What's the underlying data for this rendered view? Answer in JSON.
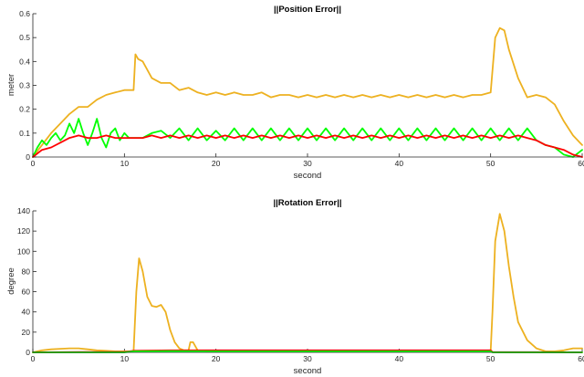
{
  "chart_data": [
    {
      "type": "line",
      "title": "||Position Error||",
      "xlabel": "second",
      "ylabel": "meter",
      "xlim": [
        0,
        60
      ],
      "ylim": [
        0,
        0.6
      ],
      "xticks": [
        "0",
        "10",
        "20",
        "30",
        "40",
        "50",
        "60"
      ],
      "yticks": [
        "0",
        "0.1",
        "0.2",
        "0.3",
        "0.4",
        "0.5",
        "0.6"
      ],
      "grid": false,
      "series": [
        {
          "color": "#EDB120",
          "x": [
            0,
            1,
            2,
            3,
            4,
            5,
            6,
            7,
            8,
            9,
            10,
            11,
            11.2,
            11.5,
            12,
            13,
            14,
            15,
            16,
            17,
            18,
            19,
            20,
            21,
            22,
            23,
            24,
            25,
            26,
            27,
            28,
            29,
            30,
            31,
            32,
            33,
            34,
            35,
            36,
            37,
            38,
            39,
            40,
            41,
            42,
            43,
            44,
            45,
            46,
            47,
            48,
            49,
            50,
            50.5,
            51,
            51.5,
            52,
            53,
            54,
            55,
            56,
            57,
            58,
            59,
            60
          ],
          "y": [
            0.0,
            0.05,
            0.1,
            0.14,
            0.18,
            0.21,
            0.21,
            0.24,
            0.26,
            0.27,
            0.28,
            0.28,
            0.43,
            0.41,
            0.4,
            0.33,
            0.31,
            0.31,
            0.28,
            0.29,
            0.27,
            0.26,
            0.27,
            0.26,
            0.27,
            0.26,
            0.26,
            0.27,
            0.25,
            0.26,
            0.26,
            0.25,
            0.26,
            0.25,
            0.26,
            0.25,
            0.26,
            0.25,
            0.26,
            0.25,
            0.26,
            0.25,
            0.26,
            0.25,
            0.26,
            0.25,
            0.26,
            0.25,
            0.26,
            0.25,
            0.26,
            0.26,
            0.27,
            0.5,
            0.54,
            0.53,
            0.45,
            0.33,
            0.25,
            0.26,
            0.25,
            0.22,
            0.15,
            0.09,
            0.05
          ]
        },
        {
          "color": "#00FF00",
          "x": [
            0,
            0.5,
            1,
            1.5,
            2,
            2.5,
            3,
            3.5,
            4,
            4.5,
            5,
            5.5,
            6,
            6.5,
            7,
            7.5,
            8,
            8.5,
            9,
            9.5,
            10,
            10.5,
            11,
            12,
            13,
            14,
            15,
            16,
            17,
            18,
            19,
            20,
            21,
            22,
            23,
            24,
            25,
            26,
            27,
            28,
            29,
            30,
            31,
            32,
            33,
            34,
            35,
            36,
            37,
            38,
            39,
            40,
            41,
            42,
            43,
            44,
            45,
            46,
            47,
            48,
            49,
            50,
            51,
            52,
            53,
            54,
            55,
            56,
            57,
            58,
            59,
            60
          ],
          "y": [
            0.0,
            0.04,
            0.07,
            0.05,
            0.08,
            0.1,
            0.07,
            0.09,
            0.14,
            0.1,
            0.16,
            0.1,
            0.05,
            0.1,
            0.16,
            0.08,
            0.04,
            0.1,
            0.12,
            0.07,
            0.1,
            0.08,
            0.08,
            0.08,
            0.1,
            0.11,
            0.08,
            0.12,
            0.07,
            0.12,
            0.07,
            0.11,
            0.07,
            0.12,
            0.07,
            0.12,
            0.07,
            0.12,
            0.07,
            0.12,
            0.07,
            0.12,
            0.07,
            0.12,
            0.07,
            0.12,
            0.07,
            0.12,
            0.07,
            0.12,
            0.07,
            0.12,
            0.07,
            0.12,
            0.07,
            0.12,
            0.07,
            0.12,
            0.07,
            0.12,
            0.07,
            0.12,
            0.07,
            0.12,
            0.07,
            0.12,
            0.07,
            0.05,
            0.04,
            0.01,
            0.0,
            0.03
          ]
        },
        {
          "color": "#FF0000",
          "x": [
            0,
            1,
            2,
            3,
            4,
            5,
            6,
            7,
            8,
            9,
            10,
            11,
            12,
            13,
            14,
            15,
            16,
            17,
            18,
            19,
            20,
            21,
            22,
            23,
            24,
            25,
            26,
            27,
            28,
            29,
            30,
            31,
            32,
            33,
            34,
            35,
            36,
            37,
            38,
            39,
            40,
            41,
            42,
            43,
            44,
            45,
            46,
            47,
            48,
            49,
            50,
            51,
            52,
            53,
            54,
            55,
            56,
            57,
            58,
            59,
            60
          ],
          "y": [
            0.0,
            0.03,
            0.04,
            0.06,
            0.08,
            0.09,
            0.08,
            0.08,
            0.09,
            0.08,
            0.08,
            0.08,
            0.08,
            0.09,
            0.08,
            0.09,
            0.08,
            0.09,
            0.08,
            0.09,
            0.08,
            0.09,
            0.08,
            0.09,
            0.08,
            0.09,
            0.08,
            0.09,
            0.08,
            0.09,
            0.08,
            0.09,
            0.08,
            0.09,
            0.08,
            0.09,
            0.08,
            0.09,
            0.08,
            0.09,
            0.08,
            0.09,
            0.08,
            0.09,
            0.08,
            0.09,
            0.08,
            0.09,
            0.08,
            0.09,
            0.08,
            0.09,
            0.08,
            0.09,
            0.08,
            0.07,
            0.05,
            0.04,
            0.03,
            0.01,
            0.0
          ]
        }
      ]
    },
    {
      "type": "line",
      "title": "||Rotation Error||",
      "xlabel": "second",
      "ylabel": "degree",
      "xlim": [
        0,
        60
      ],
      "ylim": [
        0,
        140
      ],
      "xticks": [
        "0",
        "10",
        "20",
        "30",
        "40",
        "50",
        "60"
      ],
      "yticks": [
        "0",
        "20",
        "40",
        "60",
        "80",
        "100",
        "120",
        "140"
      ],
      "grid": false,
      "series": [
        {
          "color": "#EDB120",
          "x": [
            0,
            1,
            2,
            3,
            4,
            5,
            6,
            7,
            8,
            9,
            10,
            11,
            11.3,
            11.6,
            12,
            12.5,
            13,
            13.5,
            14,
            14.5,
            15,
            15.5,
            16,
            16.5,
            17,
            17.2,
            17.5,
            18,
            19,
            20,
            30,
            40,
            50,
            50.2,
            50.5,
            51,
            51.5,
            52,
            52.5,
            53,
            54,
            55,
            56,
            57,
            58,
            59,
            60
          ],
          "y": [
            0,
            2,
            3,
            3.5,
            4,
            4,
            3,
            2,
            1.5,
            1,
            1,
            1,
            60,
            93,
            80,
            55,
            46,
            45,
            47,
            40,
            22,
            10,
            4,
            2,
            2,
            10,
            10,
            2,
            1,
            1,
            1,
            1,
            1,
            40,
            110,
            137,
            120,
            85,
            55,
            30,
            12,
            4,
            1,
            1,
            2,
            4,
            4
          ]
        },
        {
          "color": "#FF0000",
          "x": [
            0,
            5,
            10,
            11,
            15,
            20,
            25,
            30,
            35,
            40,
            45,
            50,
            50.2,
            52,
            55,
            60
          ],
          "y": [
            0,
            0.3,
            0.3,
            1.5,
            2,
            2,
            2,
            2,
            2,
            2,
            2,
            2,
            0.3,
            0.2,
            0.2,
            0
          ]
        },
        {
          "color": "#00FF00",
          "x": [
            0,
            10,
            11,
            15,
            20,
            25,
            30,
            35,
            40,
            45,
            50,
            50.2,
            60
          ],
          "y": [
            0,
            0,
            1,
            1.2,
            1,
            1,
            1,
            1,
            1,
            1,
            1,
            0,
            0
          ]
        }
      ]
    }
  ]
}
